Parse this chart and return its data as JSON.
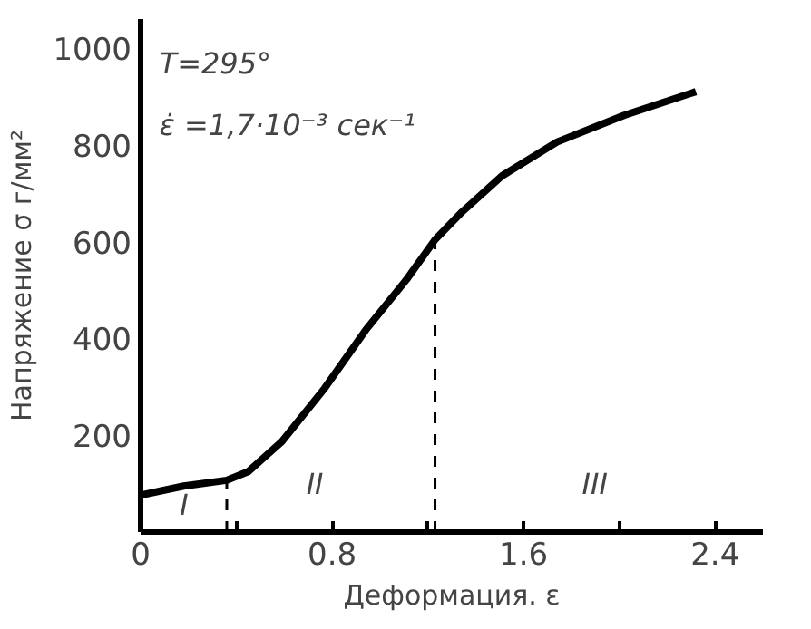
{
  "chart_data": {
    "type": "line",
    "xlabel": "Деформация. ε",
    "ylabel": "Напряжение σ г/мм²",
    "x": [
      0,
      0.18,
      0.36,
      0.45,
      0.59,
      0.77,
      0.94,
      1.11,
      1.23,
      1.34,
      1.51,
      1.74,
      2.02,
      2.32
    ],
    "series": [
      {
        "color": "#000000",
        "values": [
          76,
          95,
          107,
          125,
          187,
          298,
          417,
          521,
          604,
          660,
          736,
          806,
          861,
          910
        ]
      }
    ],
    "xlim": [
      0,
      2.6
    ],
    "ylim": [
      0,
      1060
    ],
    "xticks": [
      0,
      {
        "value": 0.4,
        "label": null
      },
      0.8,
      {
        "value": 1.2,
        "label": null
      },
      1.6,
      {
        "value": 2.0,
        "label": null
      },
      2.4
    ],
    "yticks": [
      200,
      400,
      600,
      800,
      1000
    ],
    "ref_lines": [
      {
        "axis": "x",
        "value": 0.36,
        "line_style": "dashed",
        "color": "#000000"
      },
      {
        "axis": "x",
        "value": 1.23,
        "line_style": "dashed",
        "color": "#000000"
      }
    ],
    "annotations": [
      "T=295°",
      "ε̇ =1,7·10⁻³ сек⁻¹",
      "I",
      "II",
      "III"
    ],
    "grid": false,
    "marker": "none",
    "line_style": "solid"
  }
}
